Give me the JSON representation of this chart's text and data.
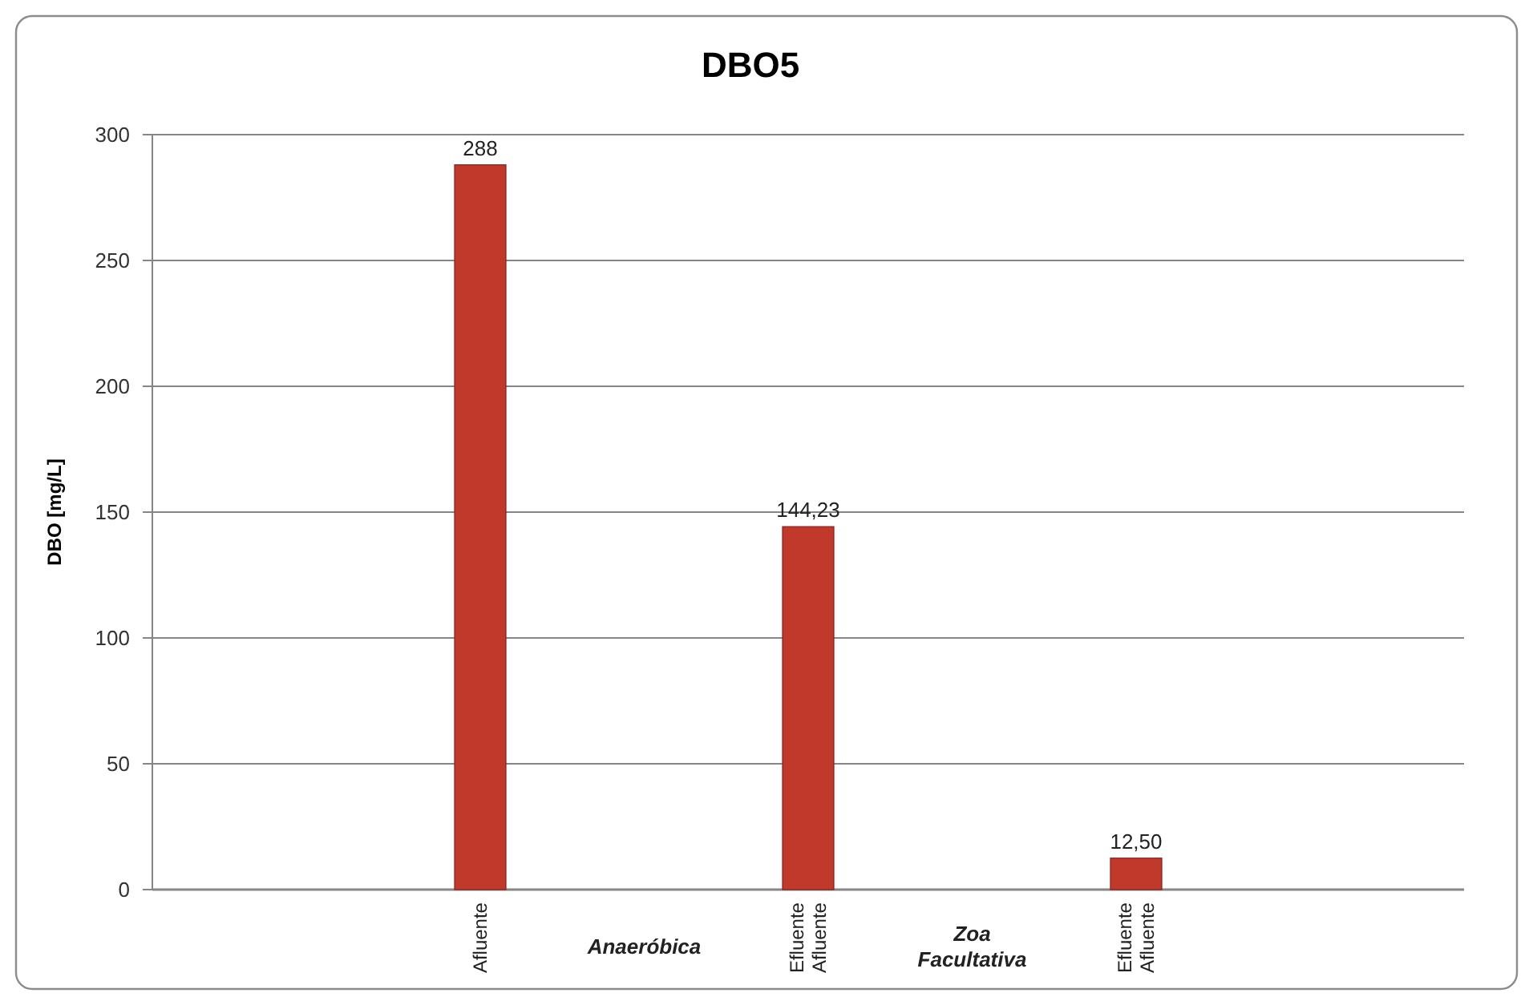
{
  "chart_data": {
    "type": "bar",
    "title": "DBO5",
    "ylabel": "DBO [mg/L]",
    "categories": [
      null,
      null,
      "Afluente",
      "Anaeróbica",
      "Efluente\nAfluente",
      "Zoa\nFacultativa",
      "Efluente\nAfluente",
      null,
      null
    ],
    "values": [
      null,
      null,
      288,
      null,
      144.23,
      null,
      12.5,
      null,
      null
    ],
    "value_labels": [
      null,
      null,
      "288",
      null,
      "144,23",
      null,
      "12,50",
      null,
      null
    ],
    "color": "#c0392b",
    "ylim": [
      0,
      300
    ],
    "yticks": [
      0,
      50,
      100,
      150,
      200,
      250,
      300
    ],
    "grid": "y"
  }
}
